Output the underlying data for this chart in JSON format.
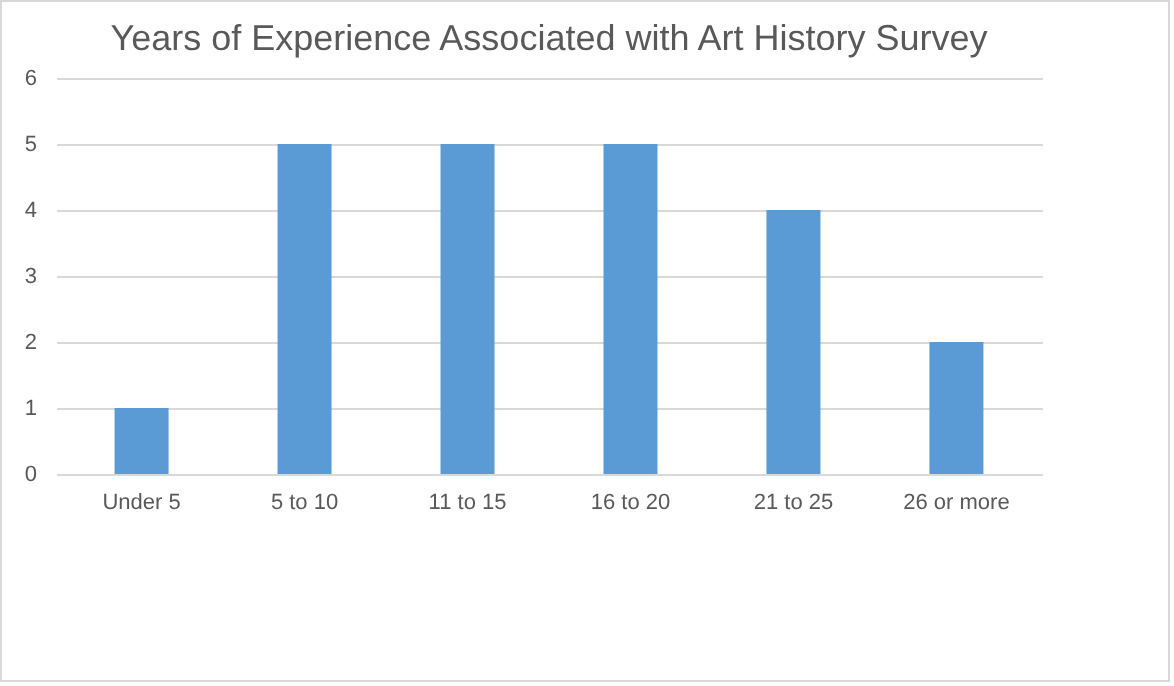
{
  "chart_data": {
    "type": "bar",
    "title": "Years of Experience Associated with Art History Survey",
    "categories": [
      "Under 5",
      "5 to 10",
      "11 to 15",
      "16 to 20",
      "21 to 25",
      "26 or more"
    ],
    "values": [
      1,
      5,
      5,
      5,
      4,
      2
    ],
    "color": "#5b9bd5",
    "ylim": [
      0,
      6
    ],
    "yticks": [
      0,
      1,
      2,
      3,
      4,
      5,
      6
    ],
    "grid": "y"
  }
}
